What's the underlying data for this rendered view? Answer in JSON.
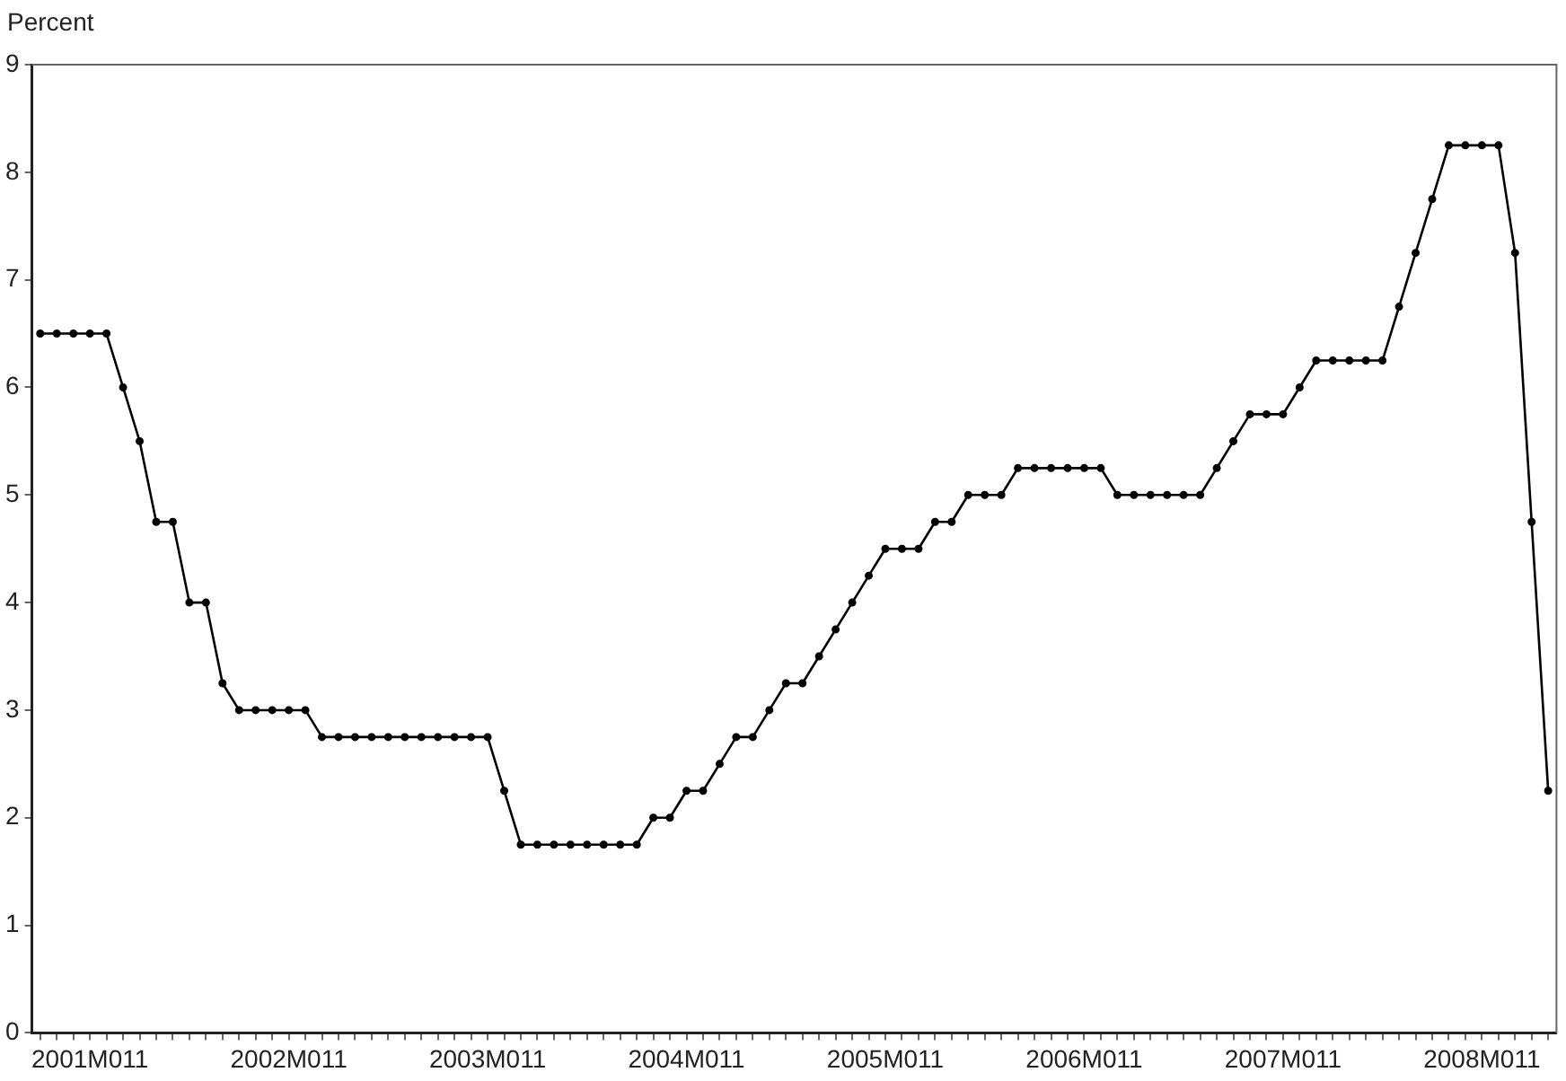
{
  "chart_data": {
    "type": "line",
    "ylabel": "Percent",
    "categories": [
      null,
      null,
      null,
      "2001M011",
      null,
      null,
      null,
      null,
      null,
      null,
      null,
      null,
      null,
      null,
      null,
      "2002M011",
      null,
      null,
      null,
      null,
      null,
      null,
      null,
      null,
      null,
      null,
      null,
      "2003M011",
      null,
      null,
      null,
      null,
      null,
      null,
      null,
      null,
      null,
      null,
      null,
      "2004M011",
      null,
      null,
      null,
      null,
      null,
      null,
      null,
      null,
      null,
      null,
      null,
      "2005M011",
      null,
      null,
      null,
      null,
      null,
      null,
      null,
      null,
      null,
      null,
      null,
      "2006M011",
      null,
      null,
      null,
      null,
      null,
      null,
      null,
      null,
      null,
      null,
      null,
      "2007M011",
      null,
      null,
      null,
      null,
      null,
      null,
      null,
      null,
      null,
      null,
      null,
      "2008M011",
      null,
      null,
      null,
      null
    ],
    "series": [
      {
        "color": "#000000",
        "values": [
          6.5,
          6.5,
          6.5,
          6.5,
          6.5,
          6.0,
          5.5,
          4.75,
          4.75,
          4.0,
          4.0,
          3.25,
          3.0,
          3.0,
          3.0,
          3.0,
          3.0,
          2.75,
          2.75,
          2.75,
          2.75,
          2.75,
          2.75,
          2.75,
          2.75,
          2.75,
          2.75,
          2.75,
          2.25,
          1.75,
          1.75,
          1.75,
          1.75,
          1.75,
          1.75,
          1.75,
          1.75,
          2.0,
          2.0,
          2.25,
          2.25,
          2.5,
          2.75,
          2.75,
          3.0,
          3.25,
          3.25,
          3.5,
          3.75,
          4.0,
          4.25,
          4.5,
          4.5,
          4.5,
          4.75,
          4.75,
          5.0,
          5.0,
          5.0,
          5.25,
          5.25,
          5.25,
          5.25,
          5.25,
          5.25,
          5.0,
          5.0,
          5.0,
          5.0,
          5.0,
          5.0,
          5.25,
          5.5,
          5.75,
          5.75,
          5.75,
          6.0,
          6.25,
          6.25,
          6.25,
          6.25,
          6.25,
          6.75,
          7.25,
          7.75,
          8.25,
          8.25,
          8.25,
          8.25,
          7.25,
          4.75,
          2.25
        ]
      }
    ],
    "ylim": [
      0,
      9
    ],
    "yticks": [
      0,
      1,
      2,
      3,
      4,
      5,
      6,
      7,
      8,
      9
    ],
    "grid": false,
    "legend": false,
    "marker": "circle",
    "line_style": "solid"
  }
}
